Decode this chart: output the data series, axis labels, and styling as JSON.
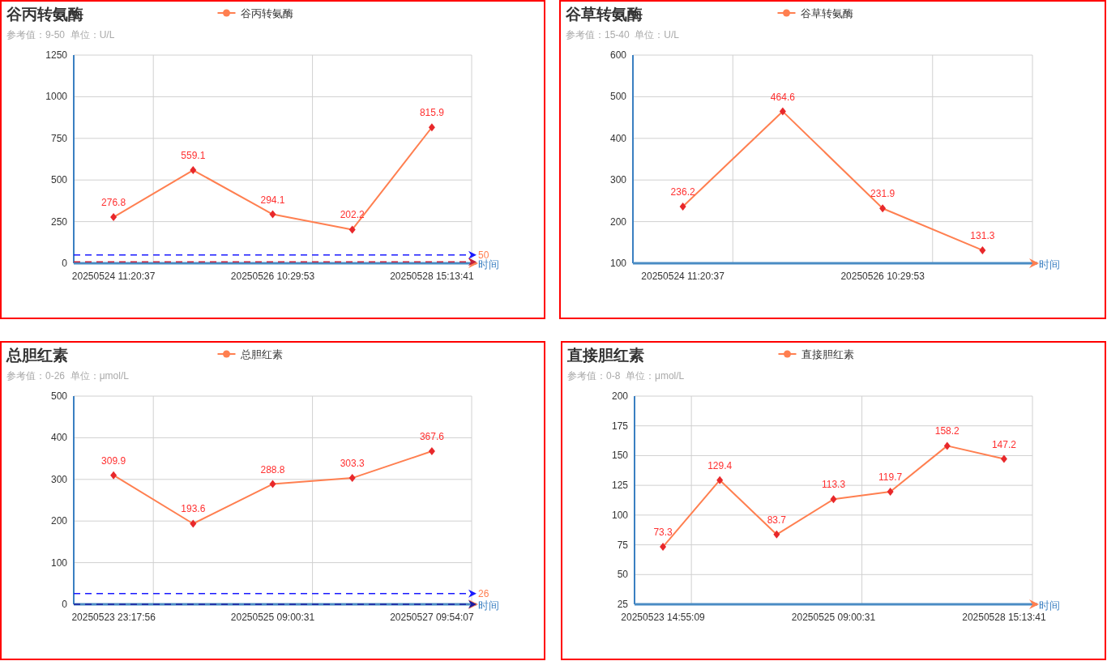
{
  "chart_data": [
    {
      "type": "line",
      "title": "谷丙转氨酶",
      "subtitle": "参考值：9-50  单位：U/L",
      "xlabel": "时间",
      "legend": "top",
      "grid": true,
      "marker": "diamond",
      "data_labels": true,
      "categories": [
        "20250524 11:20:37",
        null,
        "20250526 10:29:53",
        null,
        "20250528 15:13:41"
      ],
      "series": [
        {
          "name": "谷丙转氨酶",
          "color": "#ff7f50",
          "colors": [
            "#e8282b",
            "#e8282b",
            "#e8282b",
            "#e8282b",
            "#e8282b"
          ],
          "values": [
            276.8,
            559.1,
            294.1,
            202.2,
            815.9
          ]
        }
      ],
      "ylim": [
        0,
        1250
      ],
      "yticks": [
        0,
        250,
        500,
        750,
        1000,
        1250
      ],
      "ref_lines": [
        {
          "axis": "y",
          "value": 50,
          "label": "50",
          "color": "#1a1aff",
          "line_style": "dashed"
        },
        {
          "axis": "y",
          "value": 9,
          "color": "#c0203c",
          "line_style": "dashed"
        }
      ]
    },
    {
      "type": "line",
      "title": "谷草转氨酶",
      "subtitle": "参考值：15-40  单位：U/L",
      "xlabel": "时间",
      "legend": "top",
      "grid": true,
      "marker": "diamond",
      "data_labels": true,
      "categories": [
        "20250524 11:20:37",
        null,
        "20250526 10:29:53",
        null
      ],
      "series": [
        {
          "name": "谷草转氨酶",
          "color": "#ff7f50",
          "colors": [
            "#e8282b",
            "#e8282b",
            "#e8282b",
            "#e8282b"
          ],
          "values": [
            236.2,
            464.6,
            231.9,
            131.3
          ]
        }
      ],
      "ylim": [
        100,
        600
      ],
      "yticks": [
        100,
        200,
        300,
        400,
        500,
        600
      ]
    },
    {
      "type": "line",
      "title": "总胆红素",
      "subtitle": "参考值：0-26  单位：μmol/L",
      "xlabel": "时间",
      "legend": "top",
      "grid": true,
      "marker": "diamond",
      "data_labels": true,
      "categories": [
        "20250523 23:17:56",
        null,
        "20250525 09:00:31",
        null,
        "20250527 09:54:07"
      ],
      "series": [
        {
          "name": "总胆红素",
          "color": "#ff7f50",
          "colors": [
            "#e8282b",
            "#e8282b",
            "#e8282b",
            "#e8282b",
            "#e8282b"
          ],
          "values": [
            309.9,
            193.6,
            288.8,
            303.3,
            367.6
          ]
        }
      ],
      "ylim": [
        0,
        500
      ],
      "yticks": [
        0,
        100,
        200,
        300,
        400,
        500
      ],
      "ref_lines": [
        {
          "axis": "y",
          "value": 26,
          "label": "26",
          "color": "#1a1aff",
          "line_style": "dashed"
        },
        {
          "axis": "y",
          "value": 0,
          "color": "#1a1aa0",
          "line_style": "dashed"
        }
      ]
    },
    {
      "type": "line",
      "title": "直接胆红素",
      "subtitle": "参考值：0-8  单位：μmol/L",
      "xlabel": "时间",
      "legend": "top",
      "grid": true,
      "marker": "diamond",
      "data_labels": true,
      "categories": [
        "20250523 14:55:09",
        null,
        null,
        "20250525 09:00:31",
        null,
        null,
        "20250528 15:13:41"
      ],
      "series": [
        {
          "name": "直接胆红素",
          "color": "#ff7f50",
          "colors": [
            "#e8282b",
            "#e8282b",
            "#e8282b",
            "#e8282b",
            "#e8282b",
            "#e8282b",
            "#e8282b"
          ],
          "values": [
            73.3,
            129.4,
            83.7,
            113.3,
            119.7,
            158.2,
            147.2
          ]
        }
      ],
      "ylim": [
        25,
        200
      ],
      "yticks": [
        25,
        50,
        75,
        100,
        125,
        150,
        175,
        200
      ]
    }
  ]
}
